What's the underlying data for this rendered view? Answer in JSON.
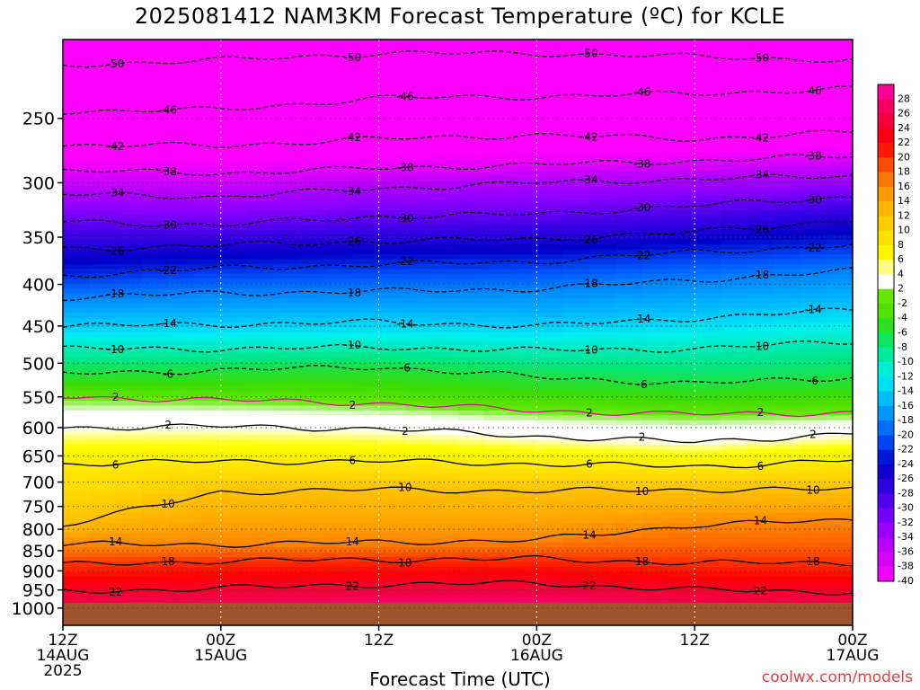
{
  "chart_data": {
    "type": "heatmap",
    "title": "2025081412 NAM3KM Forecast Temperature (ºC) for KCLE",
    "xlabel": "Forecast Time (UTC)",
    "ylabel": "",
    "credit": "coolwx.com/models",
    "x_range_hours": [
      0,
      60
    ],
    "y_range_hpa": [
      200,
      1050
    ],
    "y_scale": "log-pressure (inverted)",
    "y_ticks": [
      "250",
      "300",
      "350",
      "400",
      "450",
      "500",
      "550",
      "600",
      "650",
      "700",
      "750",
      "800",
      "850",
      "900",
      "950",
      "1000"
    ],
    "x_ticks": [
      {
        "hour": 0,
        "line1": "12Z",
        "line2": "14AUG",
        "line3": "2025"
      },
      {
        "hour": 12,
        "line1": "00Z",
        "line2": "15AUG",
        "line3": ""
      },
      {
        "hour": 24,
        "line1": "12Z",
        "line2": "",
        "line3": ""
      },
      {
        "hour": 36,
        "line1": "00Z",
        "line2": "16AUG",
        "line3": ""
      },
      {
        "hour": 48,
        "line1": "12Z",
        "line2": "",
        "line3": ""
      },
      {
        "hour": 60,
        "line1": "00Z",
        "line2": "17AUG",
        "line3": ""
      }
    ],
    "colorbar_labels": [
      "28",
      "26",
      "24",
      "22",
      "20",
      "18",
      "16",
      "14",
      "12",
      "10",
      "8",
      "6",
      "4",
      "2",
      "-2",
      "-4",
      "-6",
      "-8",
      "-10",
      "-12",
      "-14",
      "-16",
      "-18",
      "-20",
      "-22",
      "-24",
      "-26",
      "-28",
      "-30",
      "-32",
      "-34",
      "-36",
      "-38",
      "-40"
    ],
    "surface_level_hpa": 985,
    "isotherms": [
      {
        "value": -50,
        "pressure": [
          215,
          212,
          208,
          208,
          210,
          212
        ]
      },
      {
        "value": -46,
        "pressure": [
          245,
          244,
          236,
          235,
          233,
          230
        ]
      },
      {
        "value": -42,
        "pressure": [
          270,
          270,
          265,
          262,
          265,
          260
        ]
      },
      {
        "value": -38,
        "pressure": [
          290,
          292,
          288,
          285,
          282,
          278
        ]
      },
      {
        "value": -34,
        "pressure": [
          310,
          312,
          305,
          300,
          297,
          294
        ]
      },
      {
        "value": -30,
        "pressure": [
          335,
          338,
          330,
          328,
          320,
          312
        ]
      },
      {
        "value": -26,
        "pressure": [
          362,
          358,
          354,
          352,
          345,
          333
        ]
      },
      {
        "value": -22,
        "pressure": [
          390,
          382,
          378,
          375,
          365,
          358
        ]
      },
      {
        "value": -18,
        "pressure": [
          415,
          410,
          408,
          405,
          395,
          385
        ]
      },
      {
        "value": -14,
        "pressure": [
          450,
          448,
          445,
          450,
          440,
          430
        ]
      },
      {
        "value": -10,
        "pressure": [
          480,
          480,
          478,
          482,
          480,
          470
        ]
      },
      {
        "value": -6,
        "pressure": [
          515,
          510,
          505,
          520,
          530,
          520
        ]
      },
      {
        "value": -2,
        "pressure": [
          550,
          555,
          560,
          572,
          578,
          575
        ]
      },
      {
        "value": 2,
        "pressure": [
          600,
          598,
          602,
          615,
          625,
          610
        ]
      },
      {
        "value": 6,
        "pressure": [
          665,
          660,
          660,
          665,
          670,
          658
        ]
      },
      {
        "value": 10,
        "pressure": [
          790,
          720,
          715,
          718,
          715,
          715
        ]
      },
      {
        "value": 14,
        "pressure": [
          835,
          835,
          830,
          825,
          790,
          780
        ]
      },
      {
        "value": 18,
        "pressure": [
          885,
          875,
          872,
          870,
          880,
          880
        ]
      },
      {
        "value": 22,
        "pressure": [
          955,
          945,
          935,
          932,
          950,
          955
        ]
      }
    ]
  }
}
